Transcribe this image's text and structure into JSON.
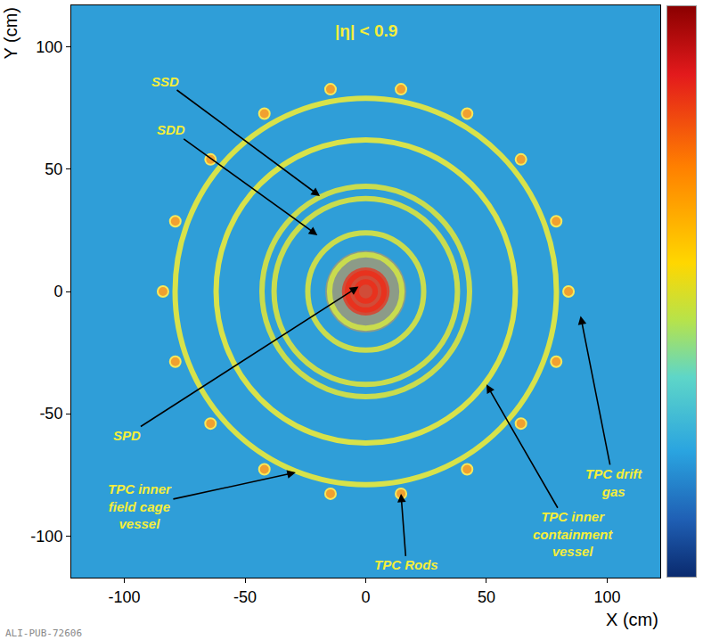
{
  "chart_data": {
    "type": "scatter",
    "title": "|η| < 0.9",
    "x_label": "X (cm)",
    "y_label": "Y (cm)",
    "footer": "ALI-PUB-72606",
    "xlim": [
      -122,
      122
    ],
    "ylim": [
      -117,
      117
    ],
    "xticks": [
      -100,
      -50,
      0,
      50,
      100
    ],
    "yticks": [
      -100,
      -50,
      0,
      50,
      100
    ],
    "grid": false,
    "series": [
      {
        "type": "ring",
        "radii": [
          3.9,
          7.6
        ],
        "color": "#e8321e"
      },
      {
        "type": "ring",
        "radii": [
          15,
          24
        ],
        "color": "#c9dc4e"
      },
      {
        "type": "ring",
        "radii": [
          38,
          43
        ],
        "color": "#c9dc4e"
      },
      {
        "type": "ring",
        "radii": [
          62
        ],
        "color": "#d8e24a"
      },
      {
        "type": "ring",
        "radii": [
          79
        ],
        "color": "#d8e24a"
      },
      {
        "type": "scatter",
        "marker": "circle",
        "color": "#f0a030",
        "x": [
          84,
          78.9,
          64.3,
          42,
          14.6,
          -14.6,
          -42,
          -64.3,
          -78.9,
          -84,
          -78.9,
          -64.3,
          -42,
          -14.6,
          14.6,
          42,
          64.3,
          78.9
        ],
        "y": [
          0,
          28.7,
          54.0,
          72.7,
          82.7,
          82.7,
          72.7,
          54.0,
          28.7,
          0,
          -28.7,
          -54.0,
          -72.7,
          -82.7,
          -82.7,
          -72.7,
          -54.0,
          -28.7
        ]
      }
    ],
    "annotations": [
      {
        "text": "SSD",
        "x": -19,
        "y": 39
      },
      {
        "text": "SDD",
        "x": -20,
        "y": 23
      },
      {
        "text": "SPD",
        "x": -3,
        "y": 2
      },
      {
        "text": "TPC inner field cage vessel",
        "x": -29,
        "y": -74
      },
      {
        "text": "TPC Rods",
        "x": 14.6,
        "y": -82.7
      },
      {
        "text": "TPC inner containment vessel",
        "x": 50,
        "y": -38
      },
      {
        "text": "TPC drift gas",
        "x": 89,
        "y": -10
      }
    ]
  }
}
